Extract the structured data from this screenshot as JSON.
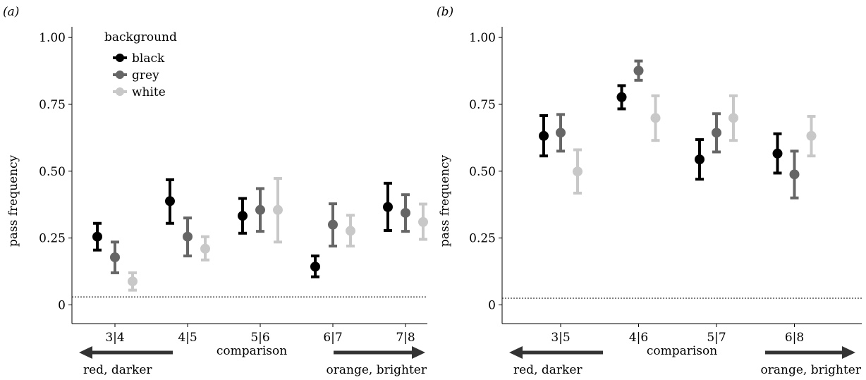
{
  "panels": [
    {
      "label": "(a)",
      "ylabel": "pass frequency",
      "xlabel": "comparison",
      "left_caption": "red, darker",
      "right_caption": "orange, brighter",
      "legend": {
        "title": "background",
        "entries": [
          "black",
          "grey",
          "white"
        ]
      }
    },
    {
      "label": "(b)",
      "ylabel": "pass frequency",
      "xlabel": "comparison",
      "left_caption": "red, darker",
      "right_caption": "orange, brighter"
    }
  ],
  "colors": {
    "black": "#000000",
    "grey": "#666666",
    "white": "#c8c8c8",
    "reference_line": "#000000",
    "axis": "#000000"
  },
  "chart_data": [
    {
      "type": "scatter",
      "title": "",
      "xlabel": "comparison",
      "ylabel": "pass frequency",
      "categories": [
        "3|4",
        "4|5",
        "5|6",
        "6|7",
        "7|8"
      ],
      "ylim": [
        -0.07,
        1.04
      ],
      "yticks": [
        0,
        0.25,
        0.5,
        0.75,
        1.0
      ],
      "ytick_labels": [
        "0",
        "0.25",
        "0.50",
        "0.75",
        "1.00"
      ],
      "reference_line": 0.03,
      "grid": false,
      "legend_position": "top-left",
      "series": [
        {
          "name": "black",
          "values": [
            0.255,
            0.388,
            0.333,
            0.143,
            0.366
          ],
          "lower": [
            0.205,
            0.305,
            0.268,
            0.105,
            0.278
          ],
          "upper": [
            0.305,
            0.468,
            0.398,
            0.183,
            0.455
          ]
        },
        {
          "name": "grey",
          "values": [
            0.178,
            0.255,
            0.355,
            0.3,
            0.344
          ],
          "lower": [
            0.12,
            0.183,
            0.275,
            0.22,
            0.275
          ],
          "upper": [
            0.235,
            0.325,
            0.435,
            0.378,
            0.412
          ]
        },
        {
          "name": "white",
          "values": [
            0.088,
            0.21,
            0.355,
            0.277,
            0.31
          ],
          "lower": [
            0.055,
            0.168,
            0.235,
            0.22,
            0.245
          ],
          "upper": [
            0.12,
            0.255,
            0.473,
            0.335,
            0.377
          ]
        }
      ]
    },
    {
      "type": "scatter",
      "title": "",
      "xlabel": "comparison",
      "ylabel": "pass frequency",
      "categories": [
        "3|5",
        "4|6",
        "5|7",
        "6|8"
      ],
      "ylim": [
        -0.07,
        1.04
      ],
      "yticks": [
        0,
        0.25,
        0.5,
        0.75,
        1.0
      ],
      "ytick_labels": [
        "0",
        "0.25",
        "0.50",
        "0.75",
        "1.00"
      ],
      "reference_line": 0.025,
      "grid": false,
      "series": [
        {
          "name": "black",
          "values": [
            0.632,
            0.777,
            0.544,
            0.566
          ],
          "lower": [
            0.557,
            0.733,
            0.47,
            0.493
          ],
          "upper": [
            0.708,
            0.82,
            0.618,
            0.64
          ]
        },
        {
          "name": "grey",
          "values": [
            0.644,
            0.876,
            0.644,
            0.488
          ],
          "lower": [
            0.575,
            0.84,
            0.572,
            0.4
          ],
          "upper": [
            0.712,
            0.912,
            0.715,
            0.575
          ]
        },
        {
          "name": "white",
          "values": [
            0.499,
            0.699,
            0.699,
            0.632
          ],
          "lower": [
            0.418,
            0.615,
            0.615,
            0.557
          ],
          "upper": [
            0.58,
            0.782,
            0.782,
            0.705
          ]
        }
      ]
    }
  ]
}
